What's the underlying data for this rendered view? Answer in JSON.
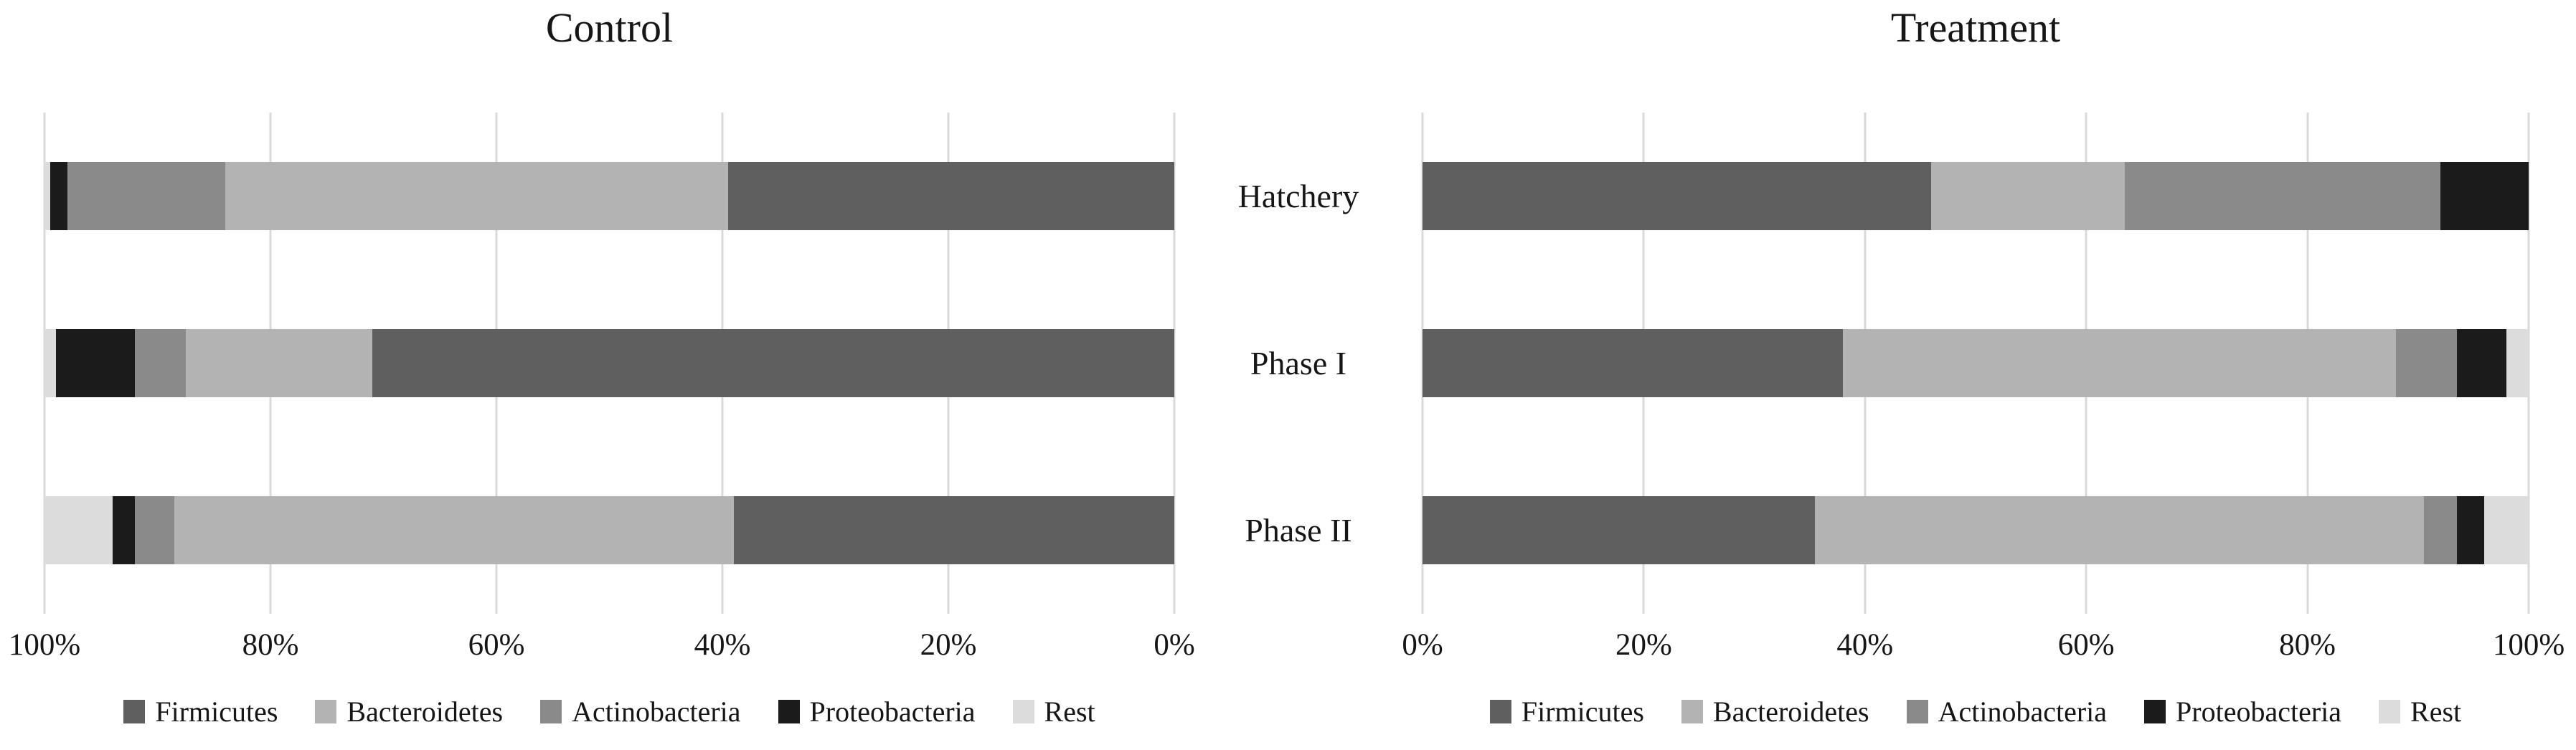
{
  "figure_background": "#ffffff",
  "gridline_color": "#d9d9d9",
  "text_color": "#161616",
  "series_colors": {
    "Firmicutes": "#5f5f5f",
    "Bacteroidetes": "#b3b3b3",
    "Actinobacteria": "#8a8a8a",
    "Proteobacteria": "#1b1b1b",
    "Rest": "#dcdcdc"
  },
  "chart_data": [
    {
      "type": "bar",
      "subtype": "horizontal-stacked-100pct",
      "title": "Control",
      "axis_reversed": true,
      "categories": [
        "Hatchery",
        "Phase I",
        "Phase II"
      ],
      "x_ticks": [
        "100%",
        "80%",
        "60%",
        "40%",
        "20%",
        "0%"
      ],
      "xlim": [
        0,
        100
      ],
      "grid": true,
      "legend_position": "bottom",
      "series": [
        {
          "name": "Firmicutes",
          "color": "#5f5f5f",
          "values": [
            39.5,
            71,
            39
          ]
        },
        {
          "name": "Bacteroidetes",
          "color": "#b3b3b3",
          "values": [
            44.5,
            16.5,
            49.5
          ]
        },
        {
          "name": "Actinobacteria",
          "color": "#8a8a8a",
          "values": [
            14,
            4.5,
            3.5
          ]
        },
        {
          "name": "Proteobacteria",
          "color": "#1b1b1b",
          "values": [
            1.5,
            7,
            2
          ]
        },
        {
          "name": "Rest",
          "color": "#dcdcdc",
          "values": [
            0.5,
            1,
            6
          ]
        }
      ]
    },
    {
      "type": "bar",
      "subtype": "horizontal-stacked-100pct",
      "title": "Treatment",
      "axis_reversed": false,
      "categories": [
        "Hatchery",
        "Phase I",
        "Phase II"
      ],
      "x_ticks": [
        "0%",
        "20%",
        "40%",
        "60%",
        "80%",
        "100%"
      ],
      "xlim": [
        0,
        100
      ],
      "grid": true,
      "legend_position": "bottom",
      "series": [
        {
          "name": "Firmicutes",
          "color": "#5f5f5f",
          "values": [
            46,
            38,
            35.5
          ]
        },
        {
          "name": "Bacteroidetes",
          "color": "#b3b3b3",
          "values": [
            17.5,
            50,
            55
          ]
        },
        {
          "name": "Actinobacteria",
          "color": "#8a8a8a",
          "values": [
            28.5,
            5.5,
            3
          ]
        },
        {
          "name": "Proteobacteria",
          "color": "#1b1b1b",
          "values": [
            8,
            4.5,
            2.5
          ]
        },
        {
          "name": "Rest",
          "color": "#dcdcdc",
          "values": [
            0,
            2,
            4
          ]
        }
      ]
    }
  ]
}
